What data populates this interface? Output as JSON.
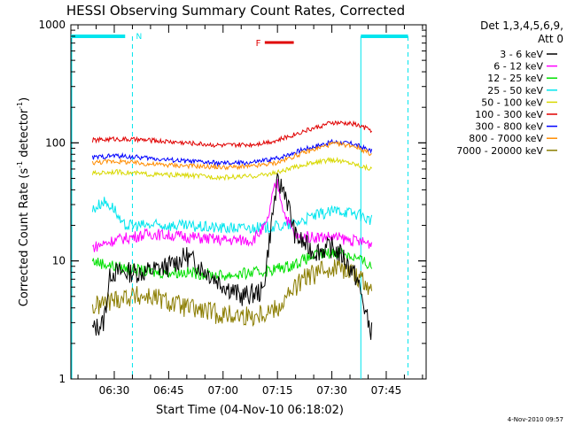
{
  "chart_data": {
    "type": "line",
    "title": "HESSI Observing Summary Count Rates, Corrected",
    "xlabel": "Start Time (04-Nov-10 06:18:02)",
    "ylabel_main": "Corrected Count Rate (s",
    "ylabel_sup1": "-1",
    "ylabel_mid": " detector",
    "ylabel_sup2": "-1",
    "ylabel_end": ")",
    "yscale": "log",
    "ylim": [
      1,
      1000
    ],
    "xlim": [
      "06:18:02",
      "07:56:00"
    ],
    "x_ticks": [
      "06:30",
      "06:45",
      "07:00",
      "07:15",
      "07:30",
      "07:45"
    ],
    "y_ticks": [
      "1",
      "10",
      "100",
      "1000"
    ],
    "timestamp": "4-Nov-2010 09:57",
    "legend": {
      "header": [
        "Det 1,3,4,5,6,9,",
        "Att 0"
      ],
      "placement": "right"
    },
    "flags": [
      {
        "label": "N",
        "color": "#00e5ee",
        "note": "night"
      },
      {
        "label": "F",
        "color": "#e00000",
        "note": "flare"
      }
    ],
    "series": [
      {
        "name": "3 - 6 keV",
        "color": "#000000",
        "points": [
          [
            "06:24",
            2.6
          ],
          [
            "06:27",
            3
          ],
          [
            "06:29",
            8
          ],
          [
            "06:33",
            8
          ],
          [
            "06:38",
            8
          ],
          [
            "06:45",
            9
          ],
          [
            "06:50",
            11
          ],
          [
            "06:58",
            7
          ],
          [
            "07:05",
            5
          ],
          [
            "07:11",
            5.5
          ],
          [
            "07:14",
            30
          ],
          [
            "07:15",
            45
          ],
          [
            "07:17",
            40
          ],
          [
            "07:20",
            16
          ],
          [
            "07:25",
            12
          ],
          [
            "07:30",
            13
          ],
          [
            "07:33",
            11
          ],
          [
            "07:37",
            7
          ],
          [
            "07:40",
            3
          ],
          [
            "07:41",
            2.5
          ]
        ]
      },
      {
        "name": "6 - 12 keV",
        "color": "#ff00ff",
        "points": [
          [
            "06:24",
            13
          ],
          [
            "06:30",
            15
          ],
          [
            "06:40",
            17
          ],
          [
            "06:50",
            16
          ],
          [
            "07:00",
            15
          ],
          [
            "07:08",
            15
          ],
          [
            "07:12",
            20
          ],
          [
            "07:14",
            40
          ],
          [
            "07:15",
            45
          ],
          [
            "07:17",
            25
          ],
          [
            "07:20",
            16
          ],
          [
            "07:30",
            16
          ],
          [
            "07:35",
            15
          ],
          [
            "07:41",
            14
          ]
        ]
      },
      {
        "name": "12 - 25 keV",
        "color": "#00e000",
        "points": [
          [
            "06:24",
            10
          ],
          [
            "06:30",
            9
          ],
          [
            "06:40",
            8
          ],
          [
            "06:50",
            8
          ],
          [
            "07:00",
            7.5
          ],
          [
            "07:10",
            8
          ],
          [
            "07:18",
            9
          ],
          [
            "07:25",
            11
          ],
          [
            "07:32",
            12
          ],
          [
            "07:37",
            10.5
          ],
          [
            "07:41",
            9
          ]
        ]
      },
      {
        "name": "25 - 50 keV",
        "color": "#00e5ee",
        "points": [
          [
            "06:24",
            27
          ],
          [
            "06:27",
            32
          ],
          [
            "06:30",
            28
          ],
          [
            "06:32",
            20
          ],
          [
            "06:45",
            20
          ],
          [
            "07:00",
            19
          ],
          [
            "07:10",
            19
          ],
          [
            "07:18",
            20
          ],
          [
            "07:25",
            24
          ],
          [
            "07:32",
            27
          ],
          [
            "07:37",
            25
          ],
          [
            "07:41",
            22
          ]
        ]
      },
      {
        "name": "50 - 100 keV",
        "color": "#d8d800",
        "points": [
          [
            "06:24",
            55
          ],
          [
            "06:30",
            57
          ],
          [
            "06:40",
            54
          ],
          [
            "06:50",
            53
          ],
          [
            "07:00",
            51
          ],
          [
            "07:08",
            52
          ],
          [
            "07:15",
            56
          ],
          [
            "07:22",
            65
          ],
          [
            "07:30",
            72
          ],
          [
            "07:35",
            68
          ],
          [
            "07:41",
            60
          ]
        ]
      },
      {
        "name": "100 - 300 keV",
        "color": "#e00000",
        "points": [
          [
            "06:24",
            105
          ],
          [
            "06:30",
            108
          ],
          [
            "06:40",
            105
          ],
          [
            "06:50",
            100
          ],
          [
            "07:00",
            95
          ],
          [
            "07:08",
            97
          ],
          [
            "07:15",
            105
          ],
          [
            "07:22",
            125
          ],
          [
            "07:30",
            148
          ],
          [
            "07:36",
            145
          ],
          [
            "07:41",
            128
          ]
        ]
      },
      {
        "name": "300 - 800 keV",
        "color": "#0000ff",
        "points": [
          [
            "06:24",
            75
          ],
          [
            "06:30",
            78
          ],
          [
            "06:40",
            74
          ],
          [
            "06:50",
            70
          ],
          [
            "07:00",
            67
          ],
          [
            "07:08",
            68
          ],
          [
            "07:15",
            74
          ],
          [
            "07:22",
            88
          ],
          [
            "07:30",
            102
          ],
          [
            "07:36",
            98
          ],
          [
            "07:41",
            85
          ]
        ]
      },
      {
        "name": "800 - 7000 keV",
        "color": "#ff8c00",
        "points": [
          [
            "06:24",
            68
          ],
          [
            "06:30",
            70
          ],
          [
            "06:40",
            66
          ],
          [
            "06:50",
            64
          ],
          [
            "07:00",
            62
          ],
          [
            "07:08",
            63
          ],
          [
            "07:15",
            68
          ],
          [
            "07:22",
            82
          ],
          [
            "07:30",
            98
          ],
          [
            "07:36",
            95
          ],
          [
            "07:41",
            80
          ]
        ]
      },
      {
        "name": "7000 - 20000 keV",
        "color": "#8b7d00",
        "points": [
          [
            "06:24",
            4
          ],
          [
            "06:28",
            4.5
          ],
          [
            "06:33",
            5
          ],
          [
            "06:40",
            5
          ],
          [
            "06:50",
            4
          ],
          [
            "07:00",
            3.5
          ],
          [
            "07:08",
            3.4
          ],
          [
            "07:15",
            4
          ],
          [
            "07:22",
            7
          ],
          [
            "07:30",
            9
          ],
          [
            "07:35",
            8.5
          ],
          [
            "07:38",
            7
          ],
          [
            "07:41",
            6
          ]
        ]
      }
    ]
  }
}
